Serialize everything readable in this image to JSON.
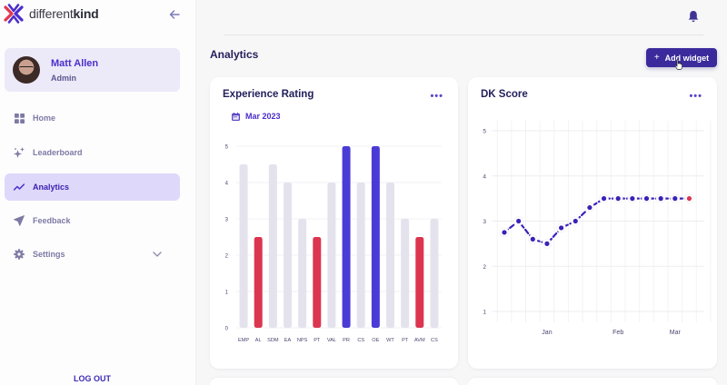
{
  "brand": {
    "name_light": "different",
    "name_bold": "kind"
  },
  "sidebar": {
    "user": {
      "name": "Matt Allen",
      "role": "Admin"
    },
    "items": [
      {
        "label": "Home",
        "icon": "grid-icon"
      },
      {
        "label": "Leaderboard",
        "icon": "sparkle-icon"
      },
      {
        "label": "Analytics",
        "icon": "trend-line-icon",
        "active": true
      },
      {
        "label": "Feedback",
        "icon": "paper-plane-icon"
      },
      {
        "label": "Settings",
        "icon": "gear-icon",
        "expandable": true
      }
    ],
    "logout_label": "LOG OUT"
  },
  "header": {
    "page_title": "Analytics",
    "add_widget_label": "Add widget"
  },
  "colors": {
    "accent": "#3a2a9c",
    "bar_high": "#4b3bd6",
    "bar_low": "#dc3550",
    "bar_neutral": "#e4e3ed",
    "line": "#3a22b8"
  },
  "chart_data": [
    {
      "type": "bar",
      "title": "Experience Rating",
      "period": "Mar 2023",
      "categories": [
        "EMP",
        "AL",
        "SDM",
        "EA",
        "NPS",
        "PT",
        "VAL",
        "PR",
        "CS",
        "OE",
        "WT",
        "PT",
        "AVM",
        "CS"
      ],
      "values": [
        4.5,
        2.5,
        4.5,
        4,
        3,
        2.5,
        4,
        5,
        4,
        5,
        4,
        3,
        2.5,
        3
      ],
      "highlight": [
        "neutral",
        "low",
        "neutral",
        "neutral",
        "neutral",
        "low",
        "neutral",
        "high",
        "neutral",
        "high",
        "neutral",
        "neutral",
        "low",
        "neutral"
      ],
      "yticks": [
        0,
        1,
        2,
        3,
        4,
        5
      ],
      "ylim": [
        0,
        5
      ],
      "grid": true
    },
    {
      "type": "line",
      "title": "DK Score",
      "values": [
        2.75,
        3.0,
        2.6,
        2.5,
        2.85,
        3.0,
        3.3,
        3.5,
        3.5,
        3.5,
        3.5,
        3.5,
        3.5,
        3.5
      ],
      "last_point_highlight": true,
      "xticks": [
        {
          "label": "Jan",
          "index": 3
        },
        {
          "label": "Feb",
          "index": 8
        },
        {
          "label": "Mar",
          "index": 12
        }
      ],
      "yticks": [
        1,
        2,
        3,
        4,
        5
      ],
      "ylim": [
        1,
        5
      ],
      "grid": true,
      "line_style": "dashed"
    }
  ]
}
